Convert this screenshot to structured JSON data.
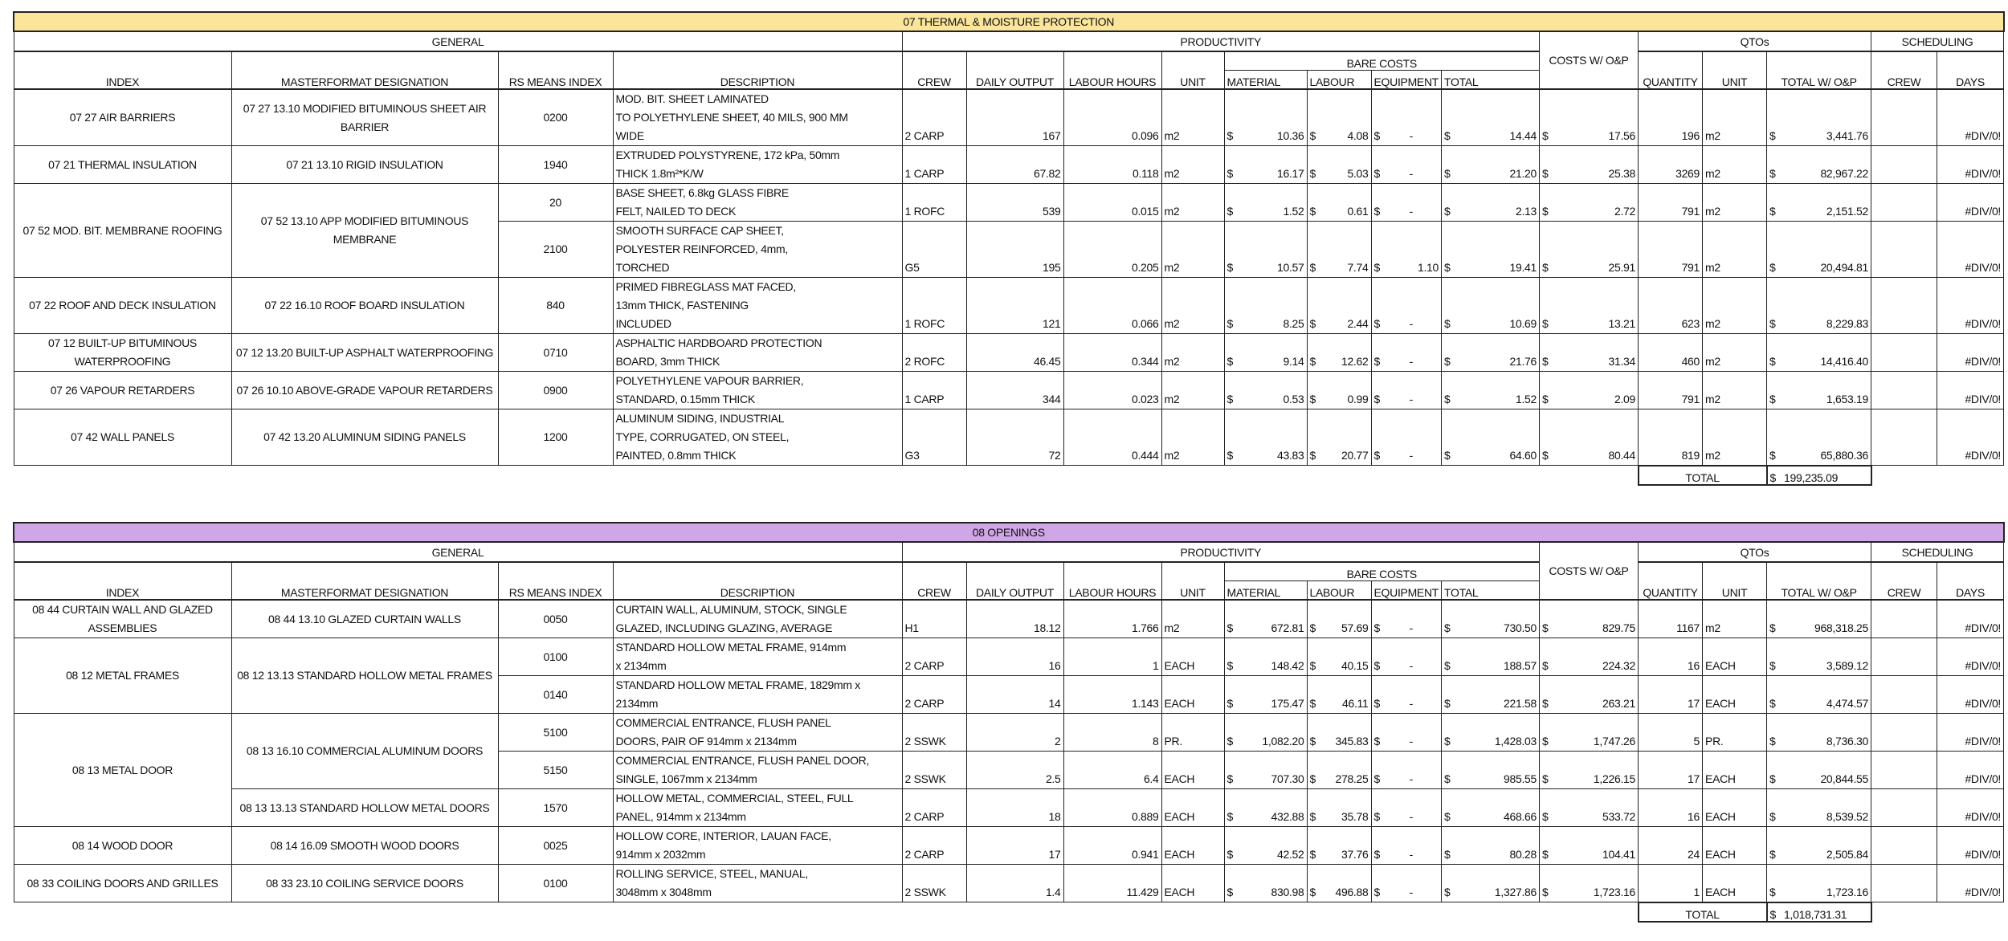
{
  "sections": [
    {
      "title": "07 THERMAL & MOISTURE PROTECTION",
      "title_color": "#fbe59b",
      "groups": {
        "general": "GENERAL",
        "productivity": "PRODUCTIVITY",
        "qtos": "QTOs",
        "scheduling": "SCHEDULING",
        "bare_costs": "BARE COSTS"
      },
      "columns": {
        "index": "INDEX",
        "masterformat": "MASTERFORMAT DESIGNATION",
        "rs": "RS MEANS INDEX",
        "description": "DESCRIPTION",
        "crew": "CREW",
        "daily": "DAILY OUTPUT",
        "labour_hours": "LABOUR HOURS",
        "unit": "UNIT",
        "material": "MATERIAL",
        "labour": "LABOUR",
        "equipment": "EQUIPMENT",
        "total": "TOTAL",
        "costs_op": "COSTS W/ O&P",
        "quantity": "QUANTITY",
        "qunit": "UNIT",
        "total_op": "TOTAL W/ O&P",
        "sched_crew": "CREW",
        "days": "DAYS"
      },
      "rows": [
        {
          "index": "07 27 AIR BARRIERS",
          "index_span": 1,
          "mf": "07 27 13.10 MODIFIED BITUMINOUS SHEET AIR BARRIER",
          "mf_span": 1,
          "rs": "0200",
          "desc": [
            "MOD. BIT. SHEET LAMINATED",
            "TO POLYETHYLENE SHEET, 40 MILS, 900 MM",
            "WIDE"
          ],
          "crew": "2 CARP",
          "daily": "167",
          "labour_hours": "0.096",
          "unit": "m2",
          "material": "10.36",
          "labour": "4.08",
          "equipment": "-",
          "total": "14.44",
          "costs_op": "17.56",
          "quantity": "196",
          "qunit": "m2",
          "total_op": "3,441.76",
          "sched_crew": "",
          "days": "#DIV/0!"
        },
        {
          "index": "07 21 THERMAL INSULATION",
          "index_span": 1,
          "mf": "07 21 13.10 RIGID INSULATION",
          "mf_span": 1,
          "rs": "1940",
          "desc": [
            "EXTRUDED POLYSTYRENE, 172 kPa, 50mm",
            "THICK 1.8m²*K/W"
          ],
          "crew": "1 CARP",
          "daily": "67.82",
          "labour_hours": "0.118",
          "unit": "m2",
          "material": "16.17",
          "labour": "5.03",
          "equipment": "-",
          "total": "21.20",
          "costs_op": "25.38",
          "quantity": "3269",
          "qunit": "m2",
          "total_op": "82,967.22",
          "sched_crew": "",
          "days": "#DIV/0!"
        },
        {
          "index": "07 52 MOD. BIT. MEMBRANE ROOFING",
          "index_span": 2,
          "mf": "07 52 13.10 APP MODIFIED BITUMINOUS MEMBRANE",
          "mf_span": 2,
          "rs": "20",
          "desc": [
            "BASE SHEET, 6.8kg GLASS FIBRE",
            "FELT, NAILED TO DECK"
          ],
          "crew": "1 ROFC",
          "daily": "539",
          "labour_hours": "0.015",
          "unit": "m2",
          "material": "1.52",
          "labour": "0.61",
          "equipment": "-",
          "total": "2.13",
          "costs_op": "2.72",
          "quantity": "791",
          "qunit": "m2",
          "total_op": "2,151.52",
          "sched_crew": "",
          "days": "#DIV/0!"
        },
        {
          "rs": "2100",
          "desc": [
            "SMOOTH SURFACE CAP SHEET,",
            "POLYESTER REINFORCED, 4mm,",
            "TORCHED"
          ],
          "crew": "G5",
          "daily": "195",
          "labour_hours": "0.205",
          "unit": "m2",
          "material": "10.57",
          "labour": "7.74",
          "equipment": "1.10",
          "total": "19.41",
          "costs_op": "25.91",
          "quantity": "791",
          "qunit": "m2",
          "total_op": "20,494.81",
          "sched_crew": "",
          "days": "#DIV/0!"
        },
        {
          "index": "07 22 ROOF AND DECK INSULATION",
          "index_span": 1,
          "mf": "07 22 16.10 ROOF BOARD INSULATION",
          "mf_span": 1,
          "rs": "840",
          "desc": [
            "PRIMED FIBREGLASS MAT FACED,",
            "13mm THICK, FASTENING",
            "INCLUDED"
          ],
          "crew": "1 ROFC",
          "daily": "121",
          "labour_hours": "0.066",
          "unit": "m2",
          "material": "8.25",
          "labour": "2.44",
          "equipment": "-",
          "total": "10.69",
          "costs_op": "13.21",
          "quantity": "623",
          "qunit": "m2",
          "total_op": "8,229.83",
          "sched_crew": "",
          "days": "#DIV/0!"
        },
        {
          "index": "07 12 BUILT-UP BITUMINOUS WATERPROOFING",
          "index_span": 1,
          "mf": "07 12 13.20 BUILT-UP ASPHALT WATERPROOFING",
          "mf_span": 1,
          "rs": "0710",
          "desc": [
            "ASPHALTIC HARDBOARD PROTECTION",
            "BOARD, 3mm THICK"
          ],
          "crew": "2 ROFC",
          "daily": "46.45",
          "labour_hours": "0.344",
          "unit": "m2",
          "material": "9.14",
          "labour": "12.62",
          "equipment": "-",
          "total": "21.76",
          "costs_op": "31.34",
          "quantity": "460",
          "qunit": "m2",
          "total_op": "14,416.40",
          "sched_crew": "",
          "days": "#DIV/0!"
        },
        {
          "index": "07 26 VAPOUR RETARDERS",
          "index_span": 1,
          "mf": "07 26 10.10 ABOVE-GRADE VAPOUR RETARDERS",
          "mf_span": 1,
          "rs": "0900",
          "desc": [
            "POLYETHYLENE VAPOUR BARRIER,",
            "STANDARD, 0.15mm THICK"
          ],
          "crew": "1 CARP",
          "daily": "344",
          "labour_hours": "0.023",
          "unit": "m2",
          "material": "0.53",
          "labour": "0.99",
          "equipment": "-",
          "total": "1.52",
          "costs_op": "2.09",
          "quantity": "791",
          "qunit": "m2",
          "total_op": "1,653.19",
          "sched_crew": "",
          "days": "#DIV/0!"
        },
        {
          "index": "07 42 WALL PANELS",
          "index_span": 1,
          "mf": "07 42 13.20 ALUMINUM SIDING PANELS",
          "mf_span": 1,
          "rs": "1200",
          "desc": [
            "ALUMINUM SIDING, INDUSTRIAL",
            "TYPE, CORRUGATED, ON STEEL,",
            "PAINTED, 0.8mm THICK"
          ],
          "crew": "G3",
          "daily": "72",
          "labour_hours": "0.444",
          "unit": "m2",
          "material": "43.83",
          "labour": "20.77",
          "equipment": "-",
          "total": "64.60",
          "costs_op": "80.44",
          "quantity": "819",
          "qunit": "m2",
          "total_op": "65,880.36",
          "sched_crew": "",
          "days": "#DIV/0!"
        }
      ],
      "total_label": "TOTAL",
      "total_value": "199,235.09"
    },
    {
      "title": "08 OPENINGS",
      "title_color": "#cfa6e6",
      "groups": {
        "general": "GENERAL",
        "productivity": "PRODUCTIVITY",
        "qtos": "QTOs",
        "scheduling": "SCHEDULING",
        "bare_costs": "BARE COSTS"
      },
      "columns": {
        "index": "INDEX",
        "masterformat": "MASTERFORMAT DESIGNATION",
        "rs": "RS MEANS INDEX",
        "description": "DESCRIPTION",
        "crew": "CREW",
        "daily": "DAILY OUTPUT",
        "labour_hours": "LABOUR HOURS",
        "unit": "UNIT",
        "material": "MATERIAL",
        "labour": "LABOUR",
        "equipment": "EQUIPMENT",
        "total": "TOTAL",
        "costs_op": "COSTS W/ O&P",
        "quantity": "QUANTITY",
        "qunit": "UNIT",
        "total_op": "TOTAL W/ O&P",
        "sched_crew": "CREW",
        "days": "DAYS"
      },
      "rows": [
        {
          "index": "08 44 CURTAIN WALL AND GLAZED ASSEMBLIES",
          "index_span": 1,
          "mf": "08 44 13.10 GLAZED CURTAIN WALLS",
          "mf_span": 1,
          "rs": "0050",
          "desc": [
            "CURTAIN WALL, ALUMINUM, STOCK, SINGLE",
            "GLAZED, INCLUDING GLAZING, AVERAGE"
          ],
          "crew": "H1",
          "daily": "18.12",
          "labour_hours": "1.766",
          "unit": "m2",
          "material": "672.81",
          "labour": "57.69",
          "equipment": "-",
          "total": "730.50",
          "costs_op": "829.75",
          "quantity": "1167",
          "qunit": "m2",
          "total_op": "968,318.25",
          "sched_crew": "",
          "days": "#DIV/0!"
        },
        {
          "index": "08 12 METAL FRAMES",
          "index_span": 2,
          "mf": "08 12 13.13 STANDARD HOLLOW METAL FRAMES",
          "mf_span": 2,
          "rs": "0100",
          "desc": [
            "STANDARD HOLLOW METAL FRAME, 914mm",
            "x 2134mm"
          ],
          "crew": "2 CARP",
          "daily": "16",
          "labour_hours": "1",
          "unit": "EACH",
          "material": "148.42",
          "labour": "40.15",
          "equipment": "-",
          "total": "188.57",
          "costs_op": "224.32",
          "quantity": "16",
          "qunit": "EACH",
          "total_op": "3,589.12",
          "sched_crew": "",
          "days": "#DIV/0!"
        },
        {
          "rs": "0140",
          "desc": [
            "STANDARD HOLLOW METAL FRAME, 1829mm x",
            "2134mm"
          ],
          "crew": "2 CARP",
          "daily": "14",
          "labour_hours": "1.143",
          "unit": "EACH",
          "material": "175.47",
          "labour": "46.11",
          "equipment": "-",
          "total": "221.58",
          "costs_op": "263.21",
          "quantity": "17",
          "qunit": "EACH",
          "total_op": "4,474.57",
          "sched_crew": "",
          "days": "#DIV/0!"
        },
        {
          "index": "08 13 METAL DOOR",
          "index_span": 3,
          "mf": "08 13 16.10 COMMERCIAL ALUMINUM DOORS",
          "mf_span": 2,
          "rs": "5100",
          "desc": [
            "COMMERCIAL ENTRANCE, FLUSH PANEL",
            "DOORS, PAIR OF 914mm x 2134mm"
          ],
          "crew": "2 SSWK",
          "daily": "2",
          "labour_hours": "8",
          "unit": "PR.",
          "material": "1,082.20",
          "labour": "345.83",
          "equipment": "-",
          "total": "1,428.03",
          "costs_op": "1,747.26",
          "quantity": "5",
          "qunit": "PR.",
          "total_op": "8,736.30",
          "sched_crew": "",
          "days": "#DIV/0!"
        },
        {
          "rs": "5150",
          "desc": [
            "COMMERCIAL ENTRANCE, FLUSH PANEL DOOR,",
            "SINGLE, 1067mm x 2134mm"
          ],
          "crew": "2 SSWK",
          "daily": "2.5",
          "labour_hours": "6.4",
          "unit": "EACH",
          "material": "707.30",
          "labour": "278.25",
          "equipment": "-",
          "total": "985.55",
          "costs_op": "1,226.15",
          "quantity": "17",
          "qunit": "EACH",
          "total_op": "20,844.55",
          "sched_crew": "",
          "days": "#DIV/0!"
        },
        {
          "mf": "08 13 13.13 STANDARD HOLLOW METAL DOORS",
          "mf_span": 1,
          "rs": "1570",
          "desc": [
            "HOLLOW METAL, COMMERCIAL, STEEL, FULL",
            "PANEL, 914mm x 2134mm"
          ],
          "crew": "2 CARP",
          "daily": "18",
          "labour_hours": "0.889",
          "unit": "EACH",
          "material": "432.88",
          "labour": "35.78",
          "equipment": "-",
          "total": "468.66",
          "costs_op": "533.72",
          "quantity": "16",
          "qunit": "EACH",
          "total_op": "8,539.52",
          "sched_crew": "",
          "days": "#DIV/0!"
        },
        {
          "index": "08 14 WOOD DOOR",
          "index_span": 1,
          "mf": "08 14 16.09 SMOOTH WOOD DOORS",
          "mf_span": 1,
          "rs": "0025",
          "desc": [
            "HOLLOW CORE, INTERIOR, LAUAN FACE,",
            "914mm x 2032mm"
          ],
          "crew": "2 CARP",
          "daily": "17",
          "labour_hours": "0.941",
          "unit": "EACH",
          "material": "42.52",
          "labour": "37.76",
          "equipment": "-",
          "total": "80.28",
          "costs_op": "104.41",
          "quantity": "24",
          "qunit": "EACH",
          "total_op": "2,505.84",
          "sched_crew": "",
          "days": "#DIV/0!"
        },
        {
          "index": "08 33 COILING DOORS AND GRILLES",
          "index_span": 1,
          "mf": "08 33 23.10 COILING SERVICE DOORS",
          "mf_span": 1,
          "rs": "0100",
          "desc": [
            "ROLLING SERVICE, STEEL, MANUAL,",
            "3048mm x 3048mm"
          ],
          "crew": "2 SSWK",
          "daily": "1.4",
          "labour_hours": "11.429",
          "unit": "EACH",
          "material": "830.98",
          "labour": "496.88",
          "equipment": "-",
          "total": "1,327.86",
          "costs_op": "1,723.16",
          "quantity": "1",
          "qunit": "EACH",
          "total_op": "1,723.16",
          "sched_crew": "",
          "days": "#DIV/0!"
        }
      ],
      "total_label": "TOTAL",
      "total_value": "1,018,731.31"
    }
  ],
  "currency_symbol": "$"
}
